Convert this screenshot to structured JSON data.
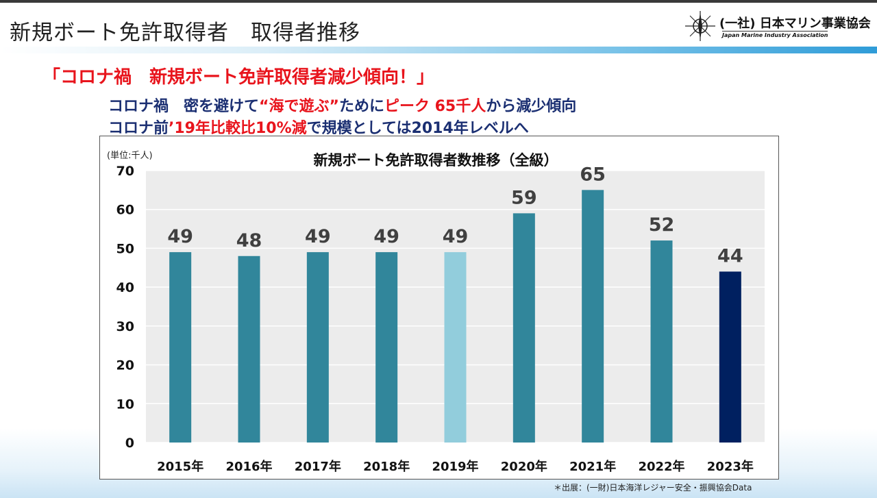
{
  "header": {
    "title": "新規ボート免許取得者　取得者推移",
    "logo_text": "(一社) 日本マリン事業協会",
    "logo_sub": "Japan Marine Industry Association"
  },
  "headline": "「コロナ禍　新規ボート免許取得者減少傾向！」",
  "sub_line1": {
    "part1": "コロナ禍　密を避けて",
    "part2": "“海で遊ぶ”",
    "part3": "ために",
    "part4": "ピーク 65千人",
    "part5": "から減少傾向"
  },
  "sub_line2": {
    "part1": "コロナ前",
    "part2": "’19年比較比10%減",
    "part3": "で規模としては2014年レベルへ"
  },
  "source": "＊出展：(一財)日本海洋レジャー安全・振興協会Data",
  "colors": {
    "bar_default": "#31869b",
    "bar_2019": "#92cddc",
    "bar_2023": "#002060",
    "plot_bg": "#ececec"
  },
  "chart_data": {
    "type": "bar",
    "title": "新規ボート免許取得者数推移（全級）",
    "unit_label": "(単位:千人)",
    "categories": [
      "2015年",
      "2016年",
      "2017年",
      "2018年",
      "2019年",
      "2020年",
      "2021年",
      "2022年",
      "2023年"
    ],
    "values": [
      49,
      48,
      49,
      49,
      49,
      59,
      65,
      52,
      44
    ],
    "labels": [
      "49",
      "48",
      "49",
      "49",
      "49",
      "59",
      "65",
      "52",
      "44"
    ],
    "ylim": [
      0,
      70
    ],
    "yticks": [
      0,
      10,
      20,
      30,
      40,
      50,
      60,
      70
    ],
    "grid": true
  }
}
